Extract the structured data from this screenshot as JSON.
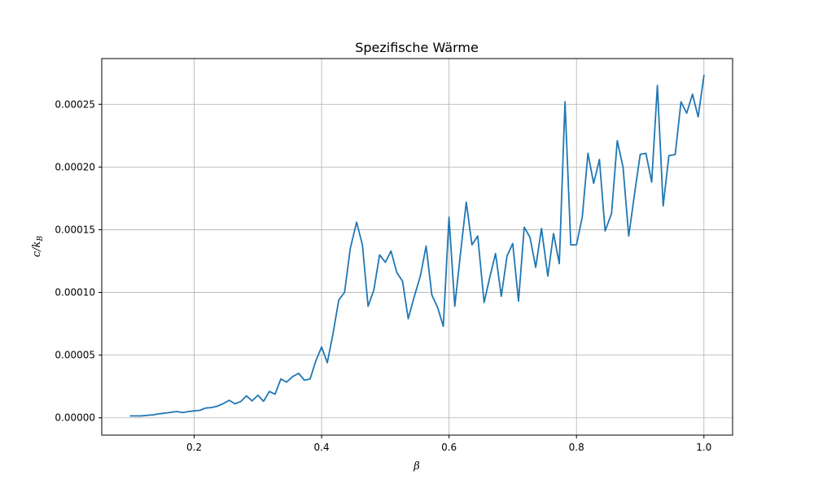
{
  "chart_data": {
    "type": "line",
    "title": "Spezifische Wärme",
    "xlabel": "β",
    "ylabel_main": "c/k",
    "ylabel_sub": "B",
    "xlim": [
      0.055,
      1.045
    ],
    "ylim": [
      -1.38e-05,
      0.0002865
    ],
    "x_ticks": [
      0.2,
      0.4,
      0.6,
      0.8,
      1.0
    ],
    "x_tick_labels": [
      "0.2",
      "0.4",
      "0.6",
      "0.8",
      "1.0"
    ],
    "y_ticks": [
      0,
      5e-05,
      0.0001,
      0.00015,
      0.0002,
      0.00025
    ],
    "y_tick_labels": [
      "0.00000",
      "0.00005",
      "0.00010",
      "0.00015",
      "0.00020",
      "0.00025"
    ],
    "grid": true,
    "line_color": "#1f77b4",
    "series": [
      {
        "x": [
          0.1,
          0.109,
          0.118,
          0.127,
          0.136,
          0.145,
          0.155,
          0.164,
          0.173,
          0.182,
          0.191,
          0.2,
          0.209,
          0.218,
          0.227,
          0.236,
          0.245,
          0.255,
          0.264,
          0.273,
          0.282,
          0.291,
          0.3,
          0.309,
          0.318,
          0.327,
          0.336,
          0.345,
          0.355,
          0.364,
          0.373,
          0.382,
          0.391,
          0.4,
          0.409,
          0.418,
          0.427,
          0.436,
          0.445,
          0.455,
          0.464,
          0.473,
          0.482,
          0.491,
          0.5,
          0.509,
          0.518,
          0.527,
          0.536,
          0.545,
          0.555,
          0.564,
          0.573,
          0.582,
          0.591,
          0.6,
          0.609,
          0.618,
          0.627,
          0.636,
          0.645,
          0.655,
          0.664,
          0.673,
          0.682,
          0.691,
          0.7,
          0.709,
          0.718,
          0.727,
          0.736,
          0.745,
          0.755,
          0.764,
          0.773,
          0.782,
          0.791,
          0.8,
          0.809,
          0.818,
          0.827,
          0.836,
          0.845,
          0.855,
          0.864,
          0.873,
          0.882,
          0.891,
          0.9,
          0.909,
          0.918,
          0.927,
          0.936,
          0.945,
          0.955,
          0.964,
          0.973,
          0.982,
          0.991,
          1.0
        ],
        "y": [
          1.5e-06,
          1.5e-06,
          1.6e-06,
          2e-06,
          2.4e-06,
          3.2e-06,
          3.8e-06,
          4.4e-06,
          5e-06,
          4.2e-06,
          5e-06,
          5.5e-06,
          6e-06,
          7.8e-06,
          8.2e-06,
          9.2e-06,
          1.12e-05,
          1.4e-05,
          1.12e-05,
          1.3e-05,
          1.75e-05,
          1.35e-05,
          1.8e-05,
          1.32e-05,
          2.1e-05,
          1.88e-05,
          3.1e-05,
          2.85e-05,
          3.3e-05,
          3.55e-05,
          3e-05,
          3.1e-05,
          4.55e-05,
          5.65e-05,
          4.4e-05,
          6.75e-05,
          9.4e-05,
          0.0001,
          0.000135,
          0.000156,
          0.000138,
          8.9e-05,
          0.000102,
          0.00013,
          0.000124,
          0.000133,
          0.000116,
          0.000109,
          7.9e-05,
          9.6e-05,
          0.000113,
          0.000137,
          9.8e-05,
          8.8e-05,
          7.3e-05,
          0.00016,
          8.9e-05,
          0.000131,
          0.000172,
          0.000138,
          0.000145,
          9.2e-05,
          0.000112,
          0.000131,
          9.7e-05,
          0.000129,
          0.000139,
          9.3e-05,
          0.000152,
          0.000144,
          0.00012,
          0.000151,
          0.000113,
          0.000147,
          0.000123,
          0.000252,
          0.000138,
          0.000138,
          0.00016,
          0.000211,
          0.000187,
          0.000206,
          0.000149,
          0.000163,
          0.000221,
          0.0002,
          0.000145,
          0.000178,
          0.00021,
          0.000211,
          0.000188,
          0.000265,
          0.000169,
          0.000209,
          0.00021,
          0.000252,
          0.000243,
          0.000258,
          0.00024,
          0.000273
        ]
      }
    ]
  }
}
